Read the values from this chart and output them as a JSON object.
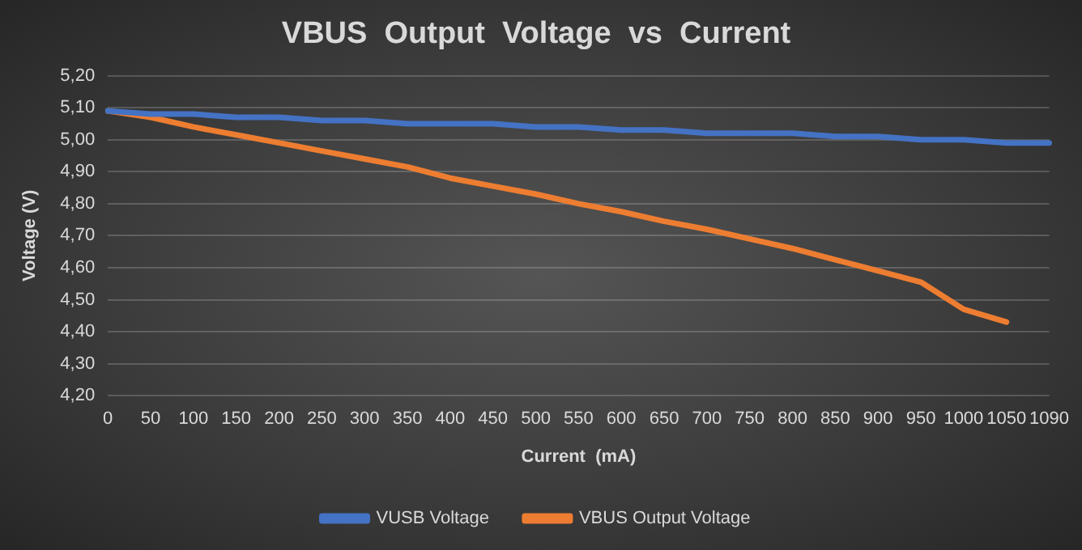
{
  "chart_data": {
    "type": "line",
    "title": "VBUS  Output  Voltage  vs  Current",
    "xlabel": "Current  (mA)",
    "ylabel": "Voltage (V)",
    "categories": [
      "0",
      "50",
      "100",
      "150",
      "200",
      "250",
      "300",
      "350",
      "400",
      "450",
      "500",
      "550",
      "600",
      "650",
      "700",
      "750",
      "800",
      "850",
      "900",
      "950",
      "1000",
      "1050",
      "1090"
    ],
    "series": [
      {
        "name": "VUSB Voltage",
        "color": "#4472c4",
        "values": [
          5.09,
          5.08,
          5.08,
          5.07,
          5.07,
          5.06,
          5.06,
          5.05,
          5.05,
          5.05,
          5.04,
          5.04,
          5.03,
          5.03,
          5.02,
          5.02,
          5.02,
          5.01,
          5.01,
          5.0,
          5.0,
          4.99,
          4.99
        ]
      },
      {
        "name": "VBUS Output Voltage",
        "color": "#ed7d31",
        "values": [
          5.09,
          5.07,
          5.04,
          5.015,
          4.99,
          4.965,
          4.94,
          4.915,
          4.88,
          4.855,
          4.83,
          4.8,
          4.775,
          4.745,
          4.72,
          4.69,
          4.66,
          4.625,
          4.59,
          4.555,
          4.47,
          4.43,
          null
        ]
      }
    ],
    "ylim": [
      4.2,
      5.2
    ],
    "yticks": [
      {
        "value": 4.2,
        "label": "4,20"
      },
      {
        "value": 4.3,
        "label": "4,30"
      },
      {
        "value": 4.4,
        "label": "4,40"
      },
      {
        "value": 4.5,
        "label": "4,50"
      },
      {
        "value": 4.6,
        "label": "4,60"
      },
      {
        "value": 4.7,
        "label": "4,70"
      },
      {
        "value": 4.8,
        "label": "4,80"
      },
      {
        "value": 4.9,
        "label": "4,90"
      },
      {
        "value": 5.0,
        "label": "5,00"
      },
      {
        "value": 5.1,
        "label": "5,10"
      },
      {
        "value": 5.2,
        "label": "5,20"
      }
    ],
    "grid": "y",
    "legend": "bottom",
    "marker": "none",
    "line_style": "solid"
  }
}
